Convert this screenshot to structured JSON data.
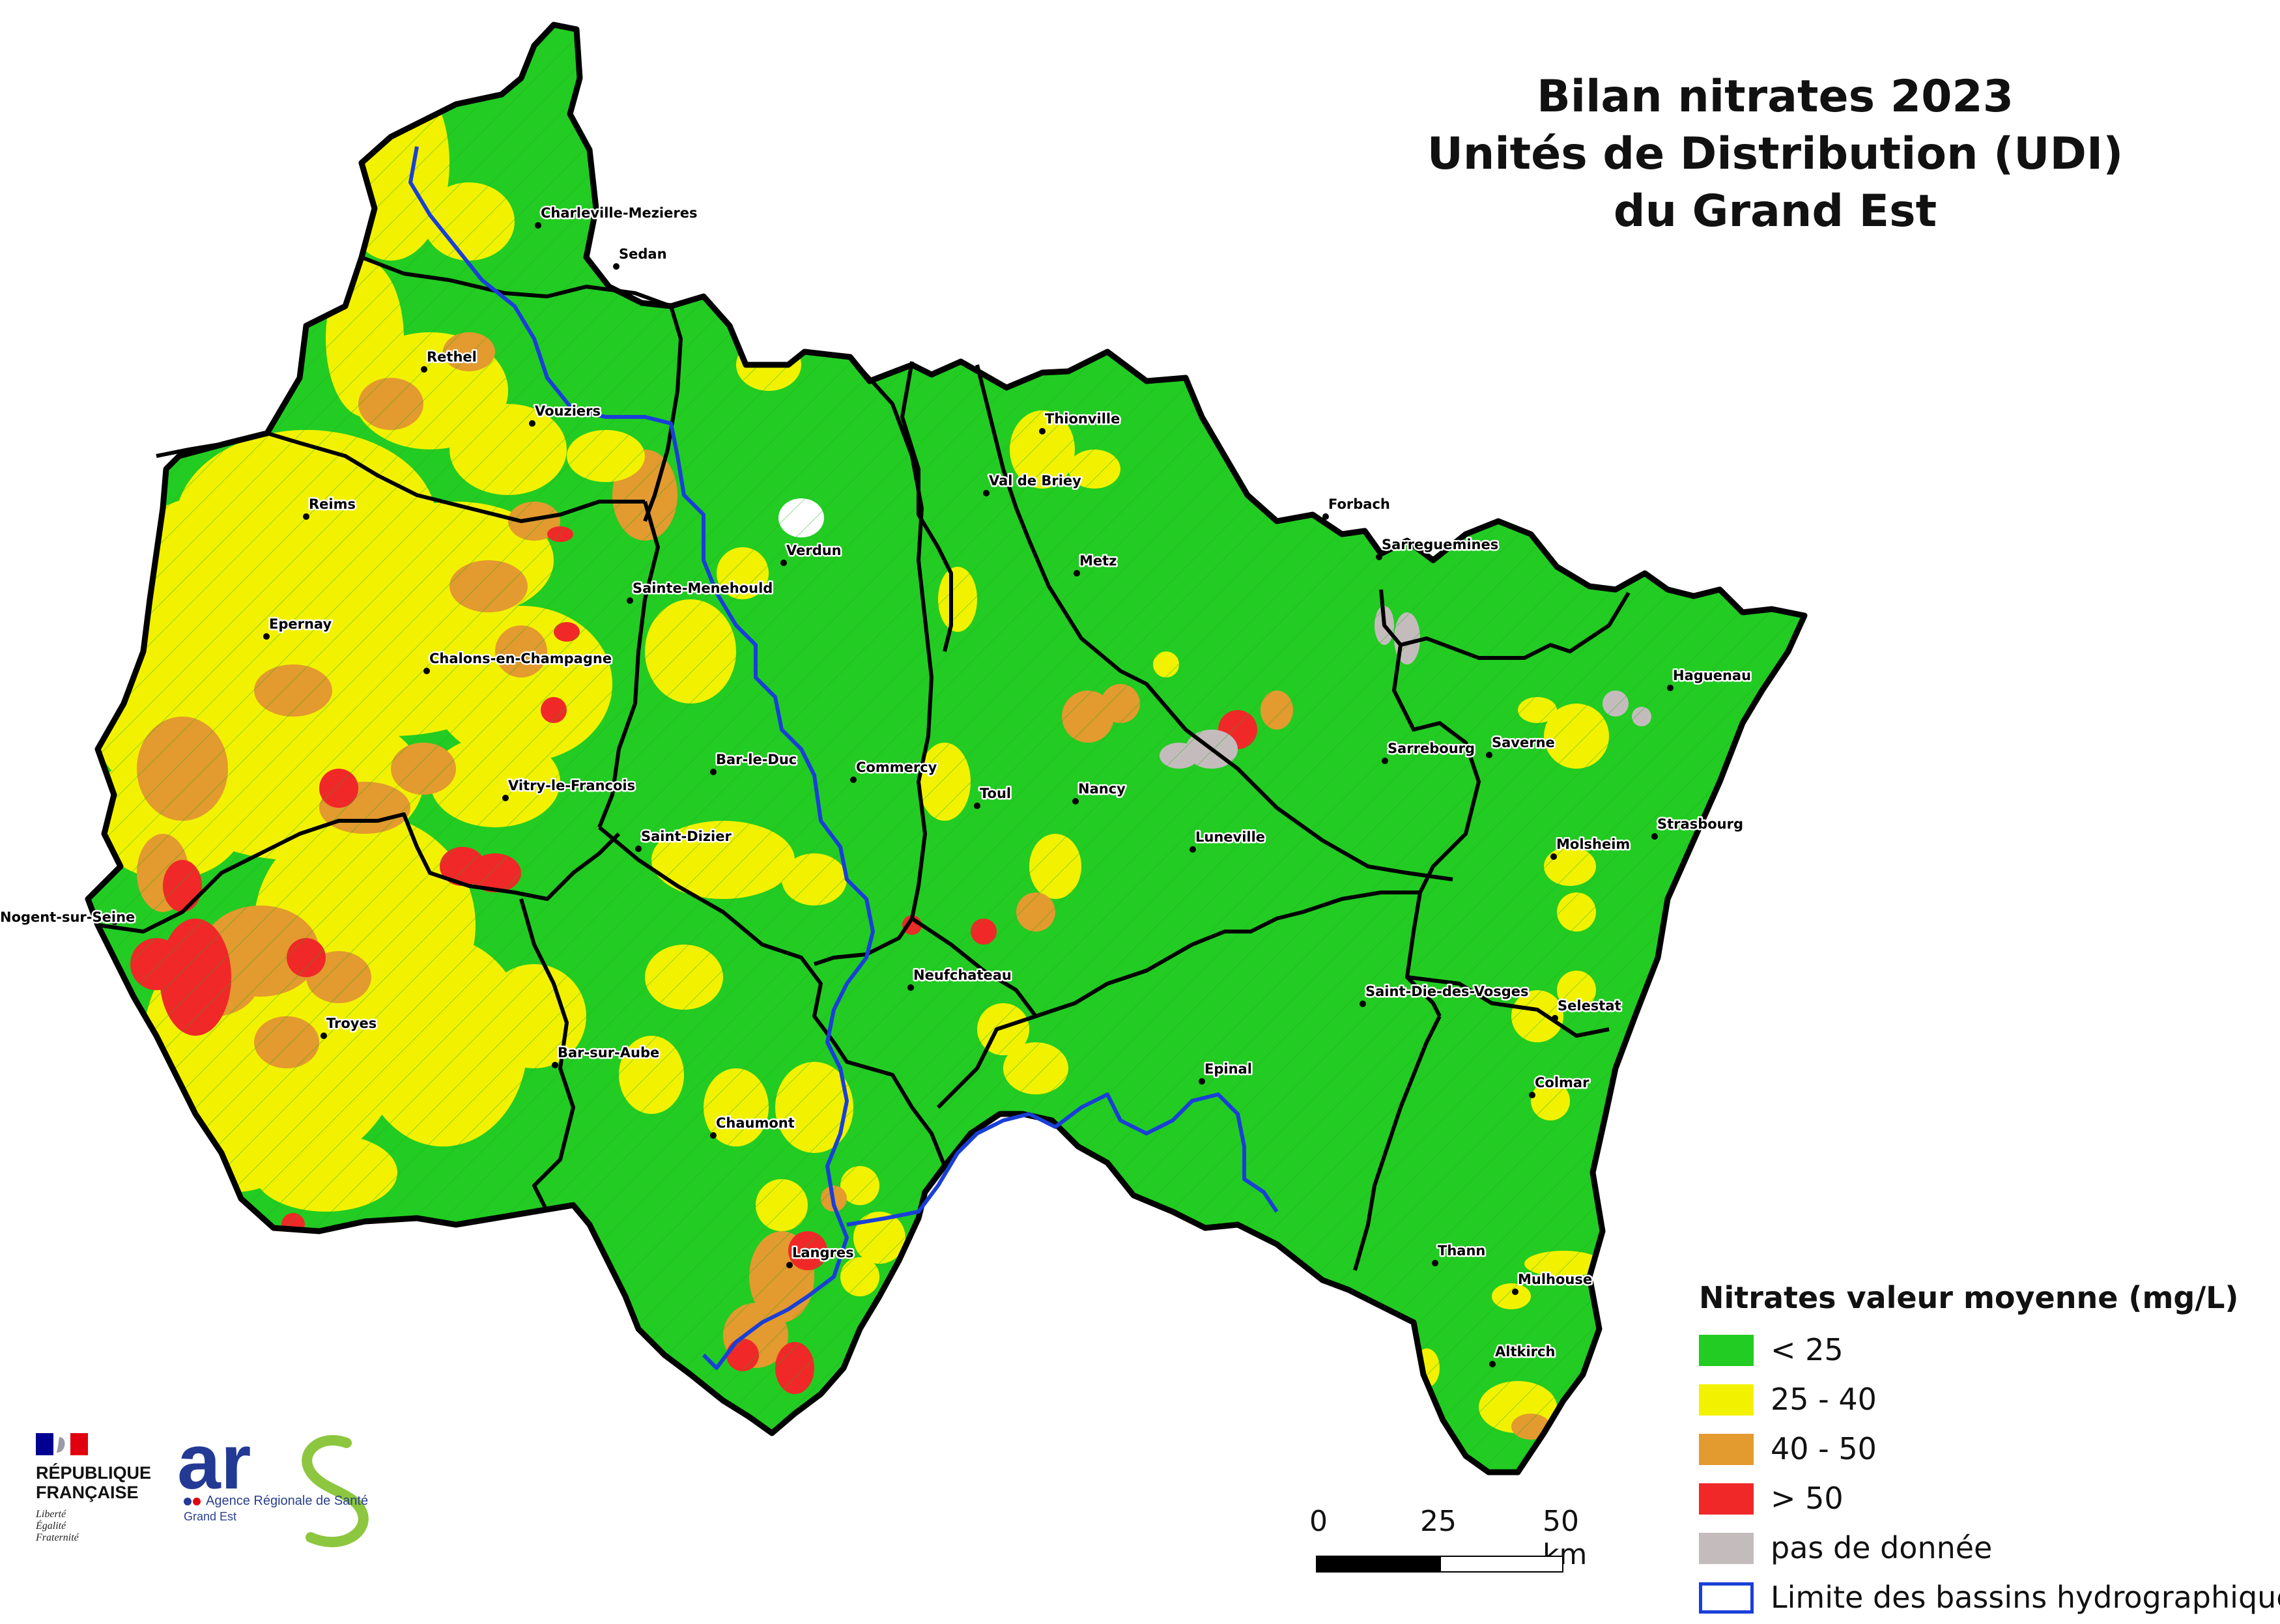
{
  "title": {
    "line1": "Bilan nitrates 2023",
    "line2": "Unités de Distribution (UDI)",
    "line3": "du Grand Est"
  },
  "legend": {
    "title": "Nitrates valeur moyenne (mg/L)",
    "items": [
      {
        "label": "< 25",
        "color": "#22cc22"
      },
      {
        "label": "25 - 40",
        "color": "#f2f200"
      },
      {
        "label": "40 - 50",
        "color": "#e39a2e"
      },
      {
        "label": "> 50",
        "color": "#f02828"
      },
      {
        "label": "pas de donnée",
        "color": "#c4bcbc"
      },
      {
        "label": "Limite des bassins hydrographiques",
        "color": "#1a3fd8"
      }
    ]
  },
  "scale_bar": {
    "labels": [
      "0",
      "25",
      "50 km"
    ]
  },
  "cities": [
    {
      "name": "Charleville-Mezieres"
    },
    {
      "name": "Sedan"
    },
    {
      "name": "Rethel"
    },
    {
      "name": "Vouziers"
    },
    {
      "name": "Reims"
    },
    {
      "name": "Epernay"
    },
    {
      "name": "Chalons-en-Champagne"
    },
    {
      "name": "Vitry-le-Francois"
    },
    {
      "name": "Nogent-sur-Seine"
    },
    {
      "name": "Troyes"
    },
    {
      "name": "Bar-sur-Aube"
    },
    {
      "name": "Saint-Dizier"
    },
    {
      "name": "Chaumont"
    },
    {
      "name": "Langres"
    },
    {
      "name": "Sainte-Menehould"
    },
    {
      "name": "Verdun"
    },
    {
      "name": "Bar-le-Duc"
    },
    {
      "name": "Commercy"
    },
    {
      "name": "Thionville"
    },
    {
      "name": "Val de Briey"
    },
    {
      "name": "Metz"
    },
    {
      "name": "Toul"
    },
    {
      "name": "Nancy"
    },
    {
      "name": "Luneville"
    },
    {
      "name": "Neufchateau"
    },
    {
      "name": "Epinal"
    },
    {
      "name": "Saint-Die-des-Vosges"
    },
    {
      "name": "Forbach"
    },
    {
      "name": "Sarreguemines"
    },
    {
      "name": "Sarrebourg"
    },
    {
      "name": "Saverne"
    },
    {
      "name": "Haguenau"
    },
    {
      "name": "Strasbourg"
    },
    {
      "name": "Molsheim"
    },
    {
      "name": "Selestat"
    },
    {
      "name": "Colmar"
    },
    {
      "name": "Thann"
    },
    {
      "name": "Mulhouse"
    },
    {
      "name": "Altkirch"
    }
  ],
  "logos": {
    "rf_line1": "RÉPUBLIQUE",
    "rf_line2": "FRANÇAISE",
    "rf_motto1": "Liberté",
    "rf_motto2": "Égalité",
    "rf_motto3": "Fraternité",
    "ars_text": "ars",
    "ars_subtitle": "Agence Régionale de Santé",
    "ars_region": "Grand Est"
  }
}
